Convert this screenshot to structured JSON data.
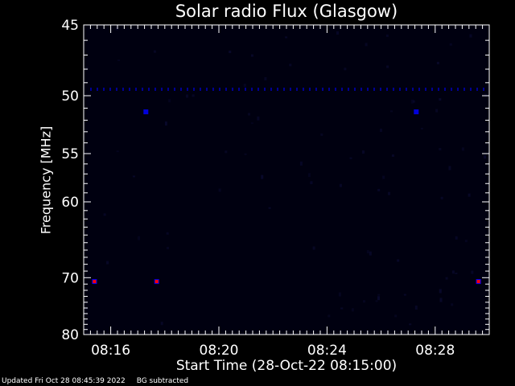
{
  "chart_data": {
    "type": "heatmap",
    "title": "Solar radio Flux (Glasgow)",
    "xlabel": "Start Time (28-Oct-22 08:15:00)",
    "ylabel": "Frequency [MHz]",
    "x_tick_labels": [
      "08:16",
      "08:20",
      "08:24",
      "08:28"
    ],
    "x_ticks_minutes": [
      1,
      5,
      9,
      13
    ],
    "xlim_minutes_after_start": [
      0,
      15
    ],
    "y_tick_values": [
      45,
      50,
      55,
      60,
      70,
      80
    ],
    "ylim": [
      45,
      80
    ],
    "y_scale": "reciprocal",
    "grid": false,
    "colormap": [
      "#000010",
      "#08082a",
      "#0000ff",
      "#ff0000"
    ],
    "features": [
      {
        "description": "Narrowband interference line",
        "frequency": 49.5,
        "time_range": [
          "08:15",
          "08:30"
        ],
        "intensity": 0.55
      },
      {
        "description": "Spot",
        "frequency": 51.3,
        "time": "08:17.3",
        "intensity": 0.85
      },
      {
        "description": "Spot",
        "frequency": 51.3,
        "time": "08:27.3",
        "intensity": 0.85
      },
      {
        "description": "Spot",
        "frequency": 70.6,
        "time": "08:15.4",
        "intensity": 1.0
      },
      {
        "description": "Spot",
        "frequency": 70.6,
        "time": "08:17.7",
        "intensity": 0.9
      },
      {
        "description": "Spot",
        "frequency": 70.6,
        "time": "08:29.6",
        "intensity": 1.0
      }
    ]
  },
  "footer": {
    "updated": "Updated Fri Oct 28 08:45:39 2022",
    "note": "BG subtracted"
  }
}
